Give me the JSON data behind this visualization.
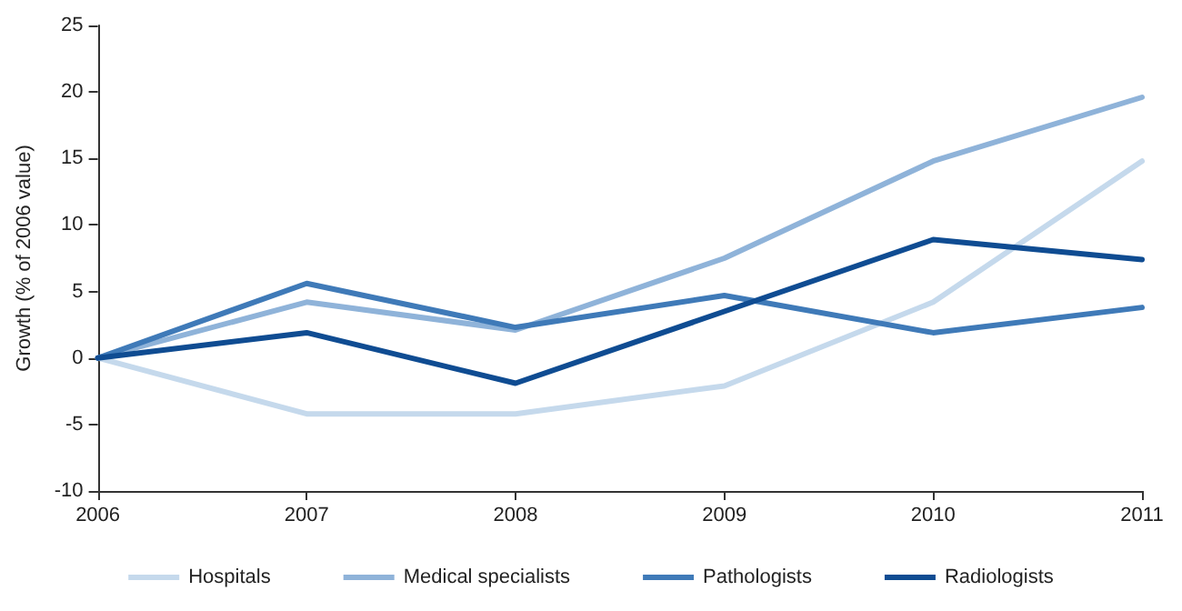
{
  "chart_data": {
    "type": "line",
    "ylabel": "Growth (% of 2006 value)",
    "categories": [
      "2006",
      "2007",
      "2008",
      "2009",
      "2010",
      "2011"
    ],
    "ylim": [
      -10,
      25
    ],
    "yticks": [
      -10,
      -5,
      0,
      5,
      10,
      15,
      20,
      25
    ],
    "grid": false,
    "legend": "bottom",
    "marker": "none",
    "line_style": "solid",
    "series": [
      {
        "name": "Hospitals",
        "color": "#c5d9ec",
        "values": [
          0,
          -4.2,
          -4.2,
          -2.1,
          4.2,
          14.8
        ]
      },
      {
        "name": "Medical specialists",
        "color": "#8fb3d9",
        "values": [
          0,
          4.2,
          2.1,
          7.5,
          14.8,
          19.6
        ]
      },
      {
        "name": "Pathologists",
        "color": "#3f7ab8",
        "values": [
          0,
          5.6,
          2.3,
          4.7,
          1.9,
          3.8
        ]
      },
      {
        "name": "Radiologists",
        "color": "#0f4c92",
        "values": [
          0,
          1.9,
          -1.9,
          3.5,
          8.9,
          7.4
        ]
      }
    ]
  }
}
